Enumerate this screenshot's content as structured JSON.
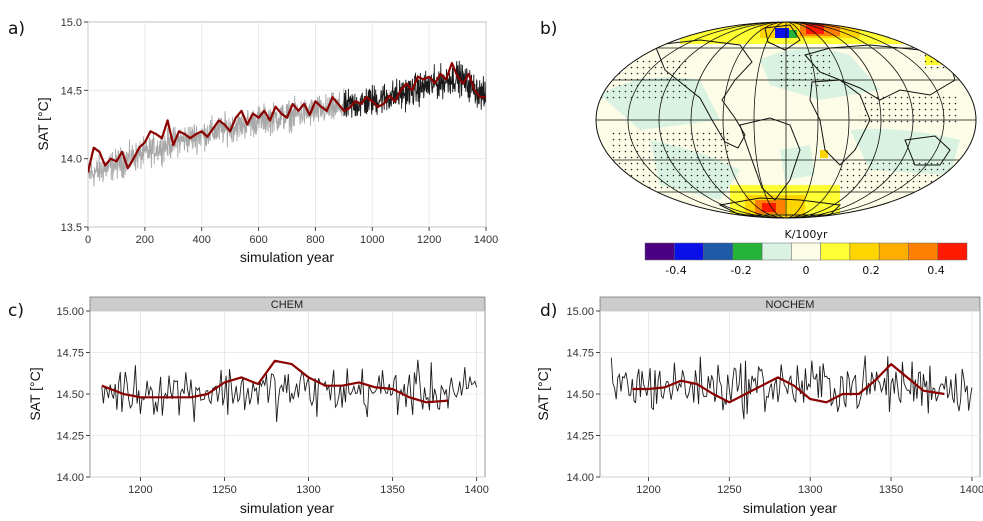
{
  "panel_labels": [
    "a)",
    "b)",
    "c)",
    "d)"
  ],
  "colors": {
    "mean_line": "#8b0000",
    "raw_grey": "#a8a8a8",
    "raw_black": "#1a1a1a",
    "panel_bg": "#ffffff",
    "grid": "#e6e6e6",
    "strip_bg": "#cccccc"
  },
  "chart_data": [
    {
      "id": "a",
      "type": "line",
      "xlabel": "simulation year",
      "ylabel": "SAT [°C]",
      "xlim": [
        0,
        1400
      ],
      "ylim": [
        13.5,
        15.0
      ],
      "xticks": [
        0,
        200,
        400,
        600,
        800,
        1000,
        1200,
        1400
      ],
      "yticks": [
        13.5,
        14.0,
        14.5,
        15.0
      ],
      "ytick_labels": [
        "13.5",
        "14.0",
        "14.5",
        "15.0"
      ],
      "series": [
        {
          "style": "raw-grey",
          "x_range": [
            0,
            900
          ],
          "trend": [
            [
              0,
              13.88
            ],
            [
              300,
              14.12
            ],
            [
              600,
              14.28
            ],
            [
              900,
              14.38
            ]
          ],
          "noise": 0.16
        },
        {
          "style": "raw-black",
          "x_range": [
            900,
            1400
          ],
          "trend": [
            [
              900,
              14.38
            ],
            [
              1100,
              14.47
            ],
            [
              1300,
              14.6
            ],
            [
              1400,
              14.45
            ]
          ],
          "noise": 0.17
        },
        {
          "style": "mean",
          "x": [
            0,
            20,
            40,
            60,
            80,
            100,
            120,
            140,
            160,
            180,
            200,
            220,
            240,
            260,
            280,
            300,
            320,
            340,
            360,
            380,
            400,
            420,
            440,
            460,
            480,
            500,
            520,
            540,
            560,
            580,
            600,
            620,
            640,
            660,
            680,
            700,
            720,
            740,
            760,
            780,
            800,
            820,
            840,
            860,
            880,
            900,
            920,
            940,
            960,
            980,
            1000,
            1020,
            1040,
            1060,
            1080,
            1100,
            1120,
            1140,
            1160,
            1180,
            1200,
            1220,
            1240,
            1260,
            1280,
            1300,
            1320,
            1340,
            1360,
            1380,
            1400
          ],
          "y": [
            13.9,
            14.08,
            14.05,
            13.95,
            14.0,
            13.98,
            14.05,
            13.93,
            14.0,
            14.08,
            14.12,
            14.2,
            14.18,
            14.15,
            14.28,
            14.1,
            14.2,
            14.18,
            14.15,
            14.18,
            14.2,
            14.16,
            14.22,
            14.28,
            14.25,
            14.2,
            14.3,
            14.35,
            14.25,
            14.33,
            14.3,
            14.35,
            14.28,
            14.38,
            14.33,
            14.3,
            14.4,
            14.35,
            14.4,
            14.32,
            14.42,
            14.38,
            14.35,
            14.45,
            14.4,
            14.35,
            14.37,
            14.42,
            14.4,
            14.45,
            14.42,
            14.38,
            14.4,
            14.46,
            14.42,
            14.5,
            14.55,
            14.5,
            14.6,
            14.58,
            14.6,
            14.55,
            14.62,
            14.58,
            14.7,
            14.6,
            14.55,
            14.62,
            14.5,
            14.45,
            14.45
          ]
        }
      ]
    },
    {
      "id": "c",
      "type": "line",
      "strip": "CHEM",
      "xlabel": "simulation year",
      "ylabel": "SAT [°C]",
      "xlim": [
        1170,
        1405
      ],
      "ylim": [
        14.0,
        15.0
      ],
      "xticks": [
        1200,
        1250,
        1300,
        1350,
        1400
      ],
      "yticks": [
        14.0,
        14.25,
        14.5,
        14.75,
        15.0
      ],
      "ytick_labels": [
        "14.00",
        "14.25",
        "14.50",
        "14.75",
        "15.00"
      ],
      "raw": {
        "x_range": [
          1177,
          1400
        ],
        "base": 14.52,
        "noise": 0.14
      },
      "smooth": {
        "x": [
          1177,
          1190,
          1200,
          1210,
          1220,
          1230,
          1240,
          1250,
          1260,
          1270,
          1280,
          1290,
          1300,
          1310,
          1320,
          1330,
          1340,
          1350,
          1360,
          1370,
          1383
        ],
        "y": [
          14.55,
          14.5,
          14.48,
          14.48,
          14.48,
          14.48,
          14.5,
          14.57,
          14.6,
          14.56,
          14.7,
          14.68,
          14.6,
          14.55,
          14.55,
          14.57,
          14.54,
          14.53,
          14.48,
          14.45,
          14.46
        ]
      }
    },
    {
      "id": "d",
      "type": "line",
      "strip": "NOCHEM",
      "xlabel": "simulation year",
      "ylabel": "SAT [°C]",
      "xlim": [
        1170,
        1405
      ],
      "ylim": [
        14.0,
        15.0
      ],
      "xticks": [
        1200,
        1250,
        1300,
        1350,
        1400
      ],
      "yticks": [
        14.0,
        14.25,
        14.5,
        14.75,
        15.0
      ],
      "ytick_labels": [
        "14.00",
        "14.25",
        "14.50",
        "14.75",
        "15.00"
      ],
      "raw": {
        "x_range": [
          1177,
          1400
        ],
        "base": 14.55,
        "noise": 0.15
      },
      "smooth": {
        "x": [
          1190,
          1200,
          1210,
          1220,
          1230,
          1240,
          1250,
          1260,
          1270,
          1280,
          1290,
          1300,
          1310,
          1320,
          1330,
          1340,
          1350,
          1360,
          1370,
          1383
        ],
        "y": [
          14.53,
          14.53,
          14.54,
          14.58,
          14.56,
          14.5,
          14.45,
          14.5,
          14.55,
          14.6,
          14.55,
          14.47,
          14.45,
          14.5,
          14.5,
          14.58,
          14.68,
          14.6,
          14.52,
          14.5
        ]
      }
    }
  ],
  "map_b": {
    "projection": "mollweide",
    "colorbar": {
      "title": "K/100yr",
      "tick_labels": [
        "-0.4",
        "-0.2",
        "0",
        "0.2",
        "0.4"
      ],
      "colors": [
        "#4b0082",
        "#0a10e8",
        "#1f5aa8",
        "#26b33a",
        "#d9f2e2",
        "#fdfde7",
        "#ffff33",
        "#ffd500",
        "#ffae00",
        "#ff7f00",
        "#ff1a00"
      ]
    }
  }
}
